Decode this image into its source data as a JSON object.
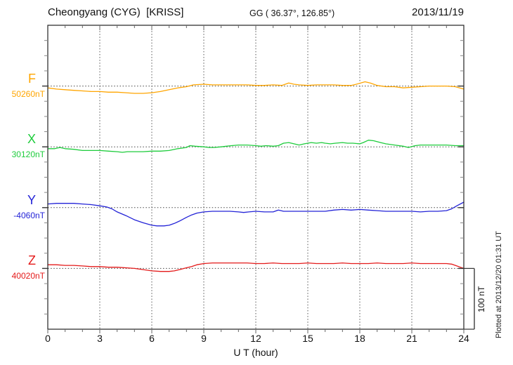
{
  "header": {
    "station_title": "Cheongyang (CYG)  [KRISS]",
    "coordinates": "GG ( 36.37°, 126.85°)",
    "date": "2013/11/19"
  },
  "axis": {
    "x_ticks": [
      "0",
      "3",
      "6",
      "9",
      "12",
      "15",
      "18",
      "21",
      "24"
    ],
    "x_label": "U T (hour)"
  },
  "scale_bar": {
    "label": "100 nT"
  },
  "plot_note": "Plotted at 2013/12/20 01:31 UT",
  "chart_data": {
    "type": "line",
    "title": "Cheongyang (CYG) [KRISS] magnetogram",
    "xlabel": "U T (hour)",
    "x_range": [
      0,
      24
    ],
    "x_tick_values": [
      0,
      3,
      6,
      9,
      12,
      15,
      18,
      21,
      24
    ],
    "grid": "dotted vertical lines every 3 h; dotted horizontal line at each component baseline",
    "legend_position": "left baseline labels",
    "scale_bar_nT": 100,
    "y_internal_range_nT": [
      0,
      500
    ],
    "y_minor_tick_nT": 25,
    "baseline_spacing_nT": 100,
    "series": [
      {
        "name": "F",
        "baseline_label": "50260nT",
        "baseline_value_nT": 50260,
        "color": "#FFA500",
        "axis_offset_nT": 400,
        "points_hour_delta_nT": [
          [
            0,
            -3
          ],
          [
            0.5,
            -5
          ],
          [
            1,
            -6
          ],
          [
            1.5,
            -7
          ],
          [
            2,
            -8
          ],
          [
            2.5,
            -9
          ],
          [
            3,
            -9
          ],
          [
            3.5,
            -10
          ],
          [
            4,
            -10
          ],
          [
            4.5,
            -11
          ],
          [
            5,
            -12
          ],
          [
            5.5,
            -12
          ],
          [
            6,
            -11
          ],
          [
            6.5,
            -9
          ],
          [
            7,
            -6
          ],
          [
            7.5,
            -3
          ],
          [
            8,
            -1
          ],
          [
            8.4,
            2
          ],
          [
            9,
            3
          ],
          [
            9.5,
            2
          ],
          [
            10,
            2
          ],
          [
            10.5,
            2
          ],
          [
            11,
            2
          ],
          [
            11.5,
            2
          ],
          [
            12,
            1
          ],
          [
            12.5,
            1
          ],
          [
            13,
            2
          ],
          [
            13.5,
            1
          ],
          [
            13.9,
            5
          ],
          [
            14.2,
            3
          ],
          [
            14.5,
            2
          ],
          [
            15,
            1
          ],
          [
            15.5,
            2
          ],
          [
            16,
            2
          ],
          [
            16.5,
            2
          ],
          [
            17,
            1
          ],
          [
            17.5,
            1
          ],
          [
            17.8,
            3
          ],
          [
            18.3,
            7
          ],
          [
            18.6,
            5
          ],
          [
            19,
            1
          ],
          [
            19.5,
            -1
          ],
          [
            20,
            -1
          ],
          [
            20.5,
            -3
          ],
          [
            21,
            -2
          ],
          [
            21.5,
            -1
          ],
          [
            22,
            0
          ],
          [
            22.5,
            0
          ],
          [
            23,
            0
          ],
          [
            23.5,
            -1
          ],
          [
            24,
            -5
          ]
        ]
      },
      {
        "name": "X",
        "baseline_label": "30120nT",
        "baseline_value_nT": 30120,
        "color": "#1ECC3C",
        "axis_offset_nT": 300,
        "points_hour_delta_nT": [
          [
            0,
            -3
          ],
          [
            0.4,
            -3
          ],
          [
            0.7,
            -1
          ],
          [
            1,
            -3
          ],
          [
            1.5,
            -4
          ],
          [
            2,
            -6
          ],
          [
            2.5,
            -6
          ],
          [
            3,
            -6
          ],
          [
            3.5,
            -7
          ],
          [
            4,
            -8
          ],
          [
            4.3,
            -9
          ],
          [
            4.6,
            -8
          ],
          [
            5,
            -8
          ],
          [
            5.5,
            -8
          ],
          [
            6,
            -7
          ],
          [
            6.5,
            -7
          ],
          [
            7,
            -6
          ],
          [
            7.5,
            -3
          ],
          [
            8,
            -1
          ],
          [
            8.2,
            2
          ],
          [
            8.5,
            1
          ],
          [
            9,
            0
          ],
          [
            9.3,
            -1
          ],
          [
            9.6,
            -1
          ],
          [
            10,
            0
          ],
          [
            10.3,
            1
          ],
          [
            10.6,
            2
          ],
          [
            11,
            3
          ],
          [
            11.5,
            3
          ],
          [
            12,
            2
          ],
          [
            12.3,
            1
          ],
          [
            12.6,
            2
          ],
          [
            13,
            1
          ],
          [
            13.3,
            2
          ],
          [
            13.6,
            6
          ],
          [
            13.9,
            7
          ],
          [
            14.2,
            5
          ],
          [
            14.5,
            3
          ],
          [
            14.8,
            5
          ],
          [
            15.2,
            7
          ],
          [
            15.5,
            6
          ],
          [
            15.8,
            7
          ],
          [
            16,
            6
          ],
          [
            16.3,
            5
          ],
          [
            16.6,
            6
          ],
          [
            17,
            7
          ],
          [
            17.3,
            6
          ],
          [
            17.6,
            6
          ],
          [
            18,
            5
          ],
          [
            18.2,
            7
          ],
          [
            18.5,
            11
          ],
          [
            18.8,
            10
          ],
          [
            19.2,
            7
          ],
          [
            19.5,
            5
          ],
          [
            20,
            3
          ],
          [
            20.5,
            1
          ],
          [
            20.8,
            -1
          ],
          [
            21.2,
            2
          ],
          [
            21.5,
            3
          ],
          [
            22,
            3
          ],
          [
            22.5,
            3
          ],
          [
            23,
            3
          ],
          [
            23.5,
            2
          ],
          [
            24,
            2
          ]
        ]
      },
      {
        "name": "Y",
        "baseline_label": "-4060nT",
        "baseline_value_nT": -4060,
        "color": "#2323D7",
        "axis_offset_nT": 200,
        "points_hour_delta_nT": [
          [
            0,
            6
          ],
          [
            0.5,
            7
          ],
          [
            1,
            7
          ],
          [
            1.5,
            7
          ],
          [
            2,
            6
          ],
          [
            2.5,
            5
          ],
          [
            3,
            3
          ],
          [
            3.4,
            1
          ],
          [
            3.7,
            -2
          ],
          [
            4,
            -7
          ],
          [
            4.5,
            -13
          ],
          [
            5,
            -20
          ],
          [
            5.5,
            -25
          ],
          [
            6,
            -29
          ],
          [
            6.3,
            -30
          ],
          [
            6.7,
            -30
          ],
          [
            7,
            -29
          ],
          [
            7.3,
            -26
          ],
          [
            7.6,
            -22
          ],
          [
            8,
            -16
          ],
          [
            8.3,
            -12
          ],
          [
            8.6,
            -9
          ],
          [
            9,
            -7
          ],
          [
            9.5,
            -6
          ],
          [
            10,
            -6
          ],
          [
            10.5,
            -6
          ],
          [
            11,
            -7
          ],
          [
            11.3,
            -8
          ],
          [
            11.6,
            -7
          ],
          [
            12,
            -6
          ],
          [
            12.5,
            -7
          ],
          [
            13,
            -7
          ],
          [
            13.3,
            -4
          ],
          [
            13.6,
            -6
          ],
          [
            14,
            -6
          ],
          [
            14.5,
            -6
          ],
          [
            15,
            -6
          ],
          [
            15.5,
            -6
          ],
          [
            16,
            -6
          ],
          [
            16.5,
            -4
          ],
          [
            17,
            -3
          ],
          [
            17.5,
            -4
          ],
          [
            18,
            -3
          ],
          [
            18.5,
            -4
          ],
          [
            19,
            -5
          ],
          [
            19.5,
            -6
          ],
          [
            20,
            -6
          ],
          [
            20.5,
            -6
          ],
          [
            21,
            -6
          ],
          [
            21.5,
            -7
          ],
          [
            22,
            -6
          ],
          [
            22.5,
            -6
          ],
          [
            23,
            -5
          ],
          [
            23.3,
            -2
          ],
          [
            23.6,
            3
          ],
          [
            24,
            9
          ]
        ]
      },
      {
        "name": "Z",
        "baseline_label": "40020nT",
        "baseline_value_nT": 40020,
        "color": "#E41A1A",
        "axis_offset_nT": 100,
        "points_hour_delta_nT": [
          [
            0,
            6
          ],
          [
            0.5,
            6
          ],
          [
            1,
            5
          ],
          [
            1.5,
            5
          ],
          [
            2,
            4
          ],
          [
            2.5,
            3
          ],
          [
            3,
            3
          ],
          [
            3.5,
            2
          ],
          [
            4,
            2
          ],
          [
            4.5,
            1
          ],
          [
            5,
            0
          ],
          [
            5.5,
            -2
          ],
          [
            6,
            -4
          ],
          [
            6.5,
            -5
          ],
          [
            7,
            -5
          ],
          [
            7.3,
            -4
          ],
          [
            7.6,
            -2
          ],
          [
            8,
            1
          ],
          [
            8.3,
            3
          ],
          [
            8.6,
            6
          ],
          [
            9,
            8
          ],
          [
            9.5,
            9
          ],
          [
            10,
            9
          ],
          [
            10.5,
            9
          ],
          [
            11,
            9
          ],
          [
            11.5,
            9
          ],
          [
            12,
            8
          ],
          [
            12.5,
            8
          ],
          [
            13,
            9
          ],
          [
            13.5,
            8
          ],
          [
            14,
            8
          ],
          [
            14.5,
            8
          ],
          [
            15,
            9
          ],
          [
            15.5,
            8
          ],
          [
            16,
            8
          ],
          [
            16.5,
            8
          ],
          [
            17,
            9
          ],
          [
            17.5,
            8
          ],
          [
            18,
            8
          ],
          [
            18.5,
            8
          ],
          [
            19,
            9
          ],
          [
            19.5,
            8
          ],
          [
            20,
            8
          ],
          [
            20.5,
            8
          ],
          [
            21,
            9
          ],
          [
            21.5,
            8
          ],
          [
            22,
            8
          ],
          [
            22.5,
            8
          ],
          [
            23,
            8
          ],
          [
            23.3,
            7
          ],
          [
            23.6,
            4
          ],
          [
            23.8,
            2
          ],
          [
            24,
            0
          ]
        ]
      }
    ]
  }
}
